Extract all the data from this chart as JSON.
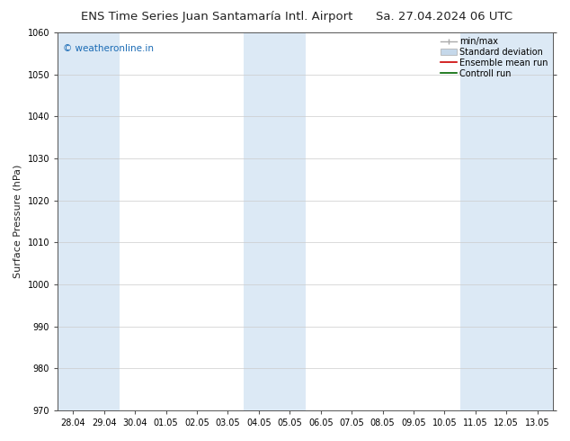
{
  "title": "ENS Time Series Juan Santamaría Intl. Airport",
  "date_label": "Sa. 27.04.2024 06 UTC",
  "ylabel": "Surface Pressure (hPa)",
  "ylim": [
    970,
    1060
  ],
  "yticks": [
    970,
    980,
    990,
    1000,
    1010,
    1020,
    1030,
    1040,
    1050,
    1060
  ],
  "x_tick_labels": [
    "28.04",
    "29.04",
    "30.04",
    "01.05",
    "02.05",
    "03.05",
    "04.05",
    "05.05",
    "06.05",
    "07.05",
    "08.05",
    "09.05",
    "10.05",
    "11.05",
    "12.05",
    "13.05"
  ],
  "x_tick_positions": [
    0,
    1,
    2,
    3,
    4,
    5,
    6,
    7,
    8,
    9,
    10,
    11,
    12,
    13,
    14,
    15
  ],
  "xlim": [
    -0.5,
    15.5
  ],
  "shaded_bands": [
    {
      "x_start": -0.5,
      "x_end": 0.5,
      "color": "#dce9f5"
    },
    {
      "x_start": 0.5,
      "x_end": 1.5,
      "color": "#dce9f5"
    },
    {
      "x_start": 5.5,
      "x_end": 6.5,
      "color": "#dce9f5"
    },
    {
      "x_start": 6.5,
      "x_end": 7.5,
      "color": "#dce9f5"
    },
    {
      "x_start": 12.5,
      "x_end": 13.5,
      "color": "#dce9f5"
    },
    {
      "x_start": 13.5,
      "x_end": 14.5,
      "color": "#dce9f5"
    },
    {
      "x_start": 14.5,
      "x_end": 15.5,
      "color": "#dce9f5"
    }
  ],
  "background_color": "#ffffff",
  "plot_bg_color": "#ffffff",
  "grid_color": "#cccccc",
  "watermark_text": "© weatheronline.in",
  "watermark_color": "#1a6bb5",
  "legend_entries": [
    "min/max",
    "Standard deviation",
    "Ensemble mean run",
    "Controll run"
  ],
  "legend_colors_line": [
    "#aaaaaa",
    "#c5d8ea",
    "#ff0000",
    "#008000"
  ],
  "title_fontsize": 9.5,
  "date_fontsize": 9.5,
  "tick_fontsize": 7,
  "ylabel_fontsize": 8,
  "watermark_fontsize": 7.5,
  "legend_fontsize": 7,
  "figsize": [
    6.34,
    4.9
  ],
  "dpi": 100
}
